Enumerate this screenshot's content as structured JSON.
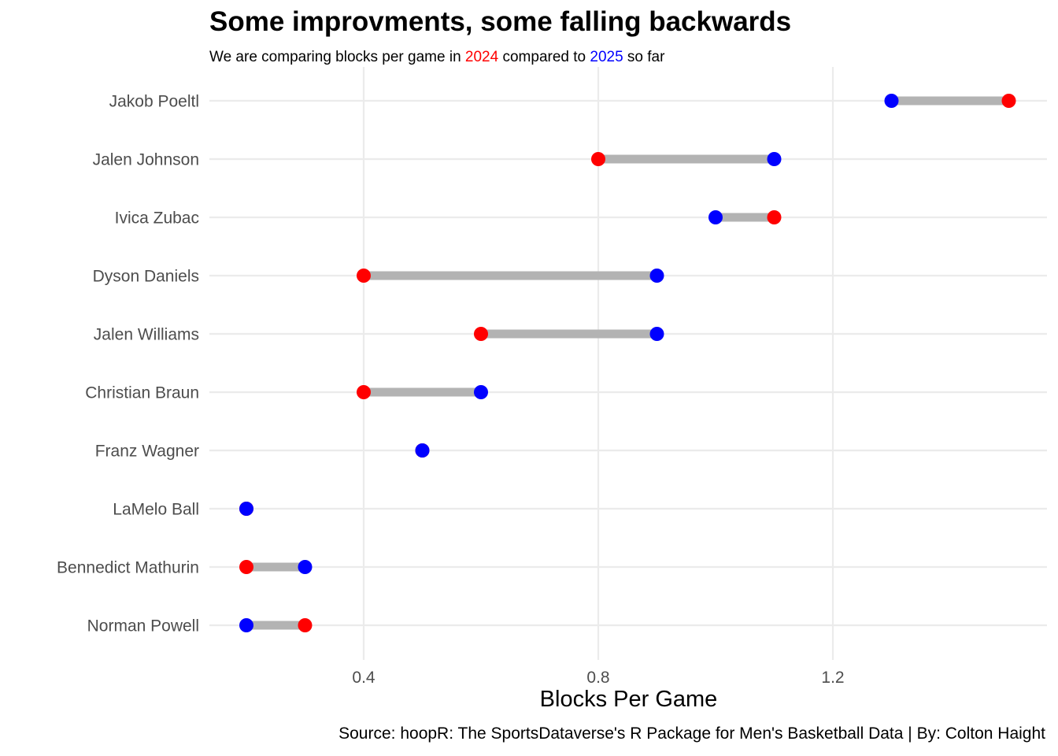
{
  "chart_data": {
    "type": "dumbbell",
    "title": "Some improvments, some falling backwards",
    "subtitle": {
      "prefix": "We are comparing blocks per game in ",
      "year_a": "2024",
      "middle": " compared to ",
      "year_b": "2025",
      "suffix": " so far"
    },
    "xlabel": "Blocks Per Game",
    "ylabel": "",
    "caption": "Source: hoopR: The SportsDataverse's R Package for Men's Basketball Data | By: Colton Haight",
    "xlim": [
      0.13,
      1.52
    ],
    "x_ticks": [
      0.4,
      0.8,
      1.2
    ],
    "x_tick_labels": [
      "0.4",
      "0.8",
      "1.2"
    ],
    "grid": true,
    "colors": {
      "2024": "#ff0000",
      "2025": "#0000ff",
      "segment": "#b3b3b3",
      "grid": "#ebebeb"
    },
    "players": [
      {
        "name": "Jakob Poeltl",
        "v2024": 1.5,
        "v2025": 1.3
      },
      {
        "name": "Jalen Johnson",
        "v2024": 0.8,
        "v2025": 1.1
      },
      {
        "name": "Ivica Zubac",
        "v2024": 1.1,
        "v2025": 1.0
      },
      {
        "name": "Dyson Daniels",
        "v2024": 0.4,
        "v2025": 0.9
      },
      {
        "name": "Jalen Williams",
        "v2024": 0.6,
        "v2025": 0.9
      },
      {
        "name": "Christian Braun",
        "v2024": 0.4,
        "v2025": 0.6
      },
      {
        "name": "Franz Wagner",
        "v2024": 0.5,
        "v2025": 0.5
      },
      {
        "name": "LaMelo Ball",
        "v2024": 0.2,
        "v2025": 0.2
      },
      {
        "name": "Bennedict Mathurin",
        "v2024": 0.2,
        "v2025": 0.3
      },
      {
        "name": "Norman Powell",
        "v2024": 0.3,
        "v2025": 0.2
      }
    ]
  }
}
